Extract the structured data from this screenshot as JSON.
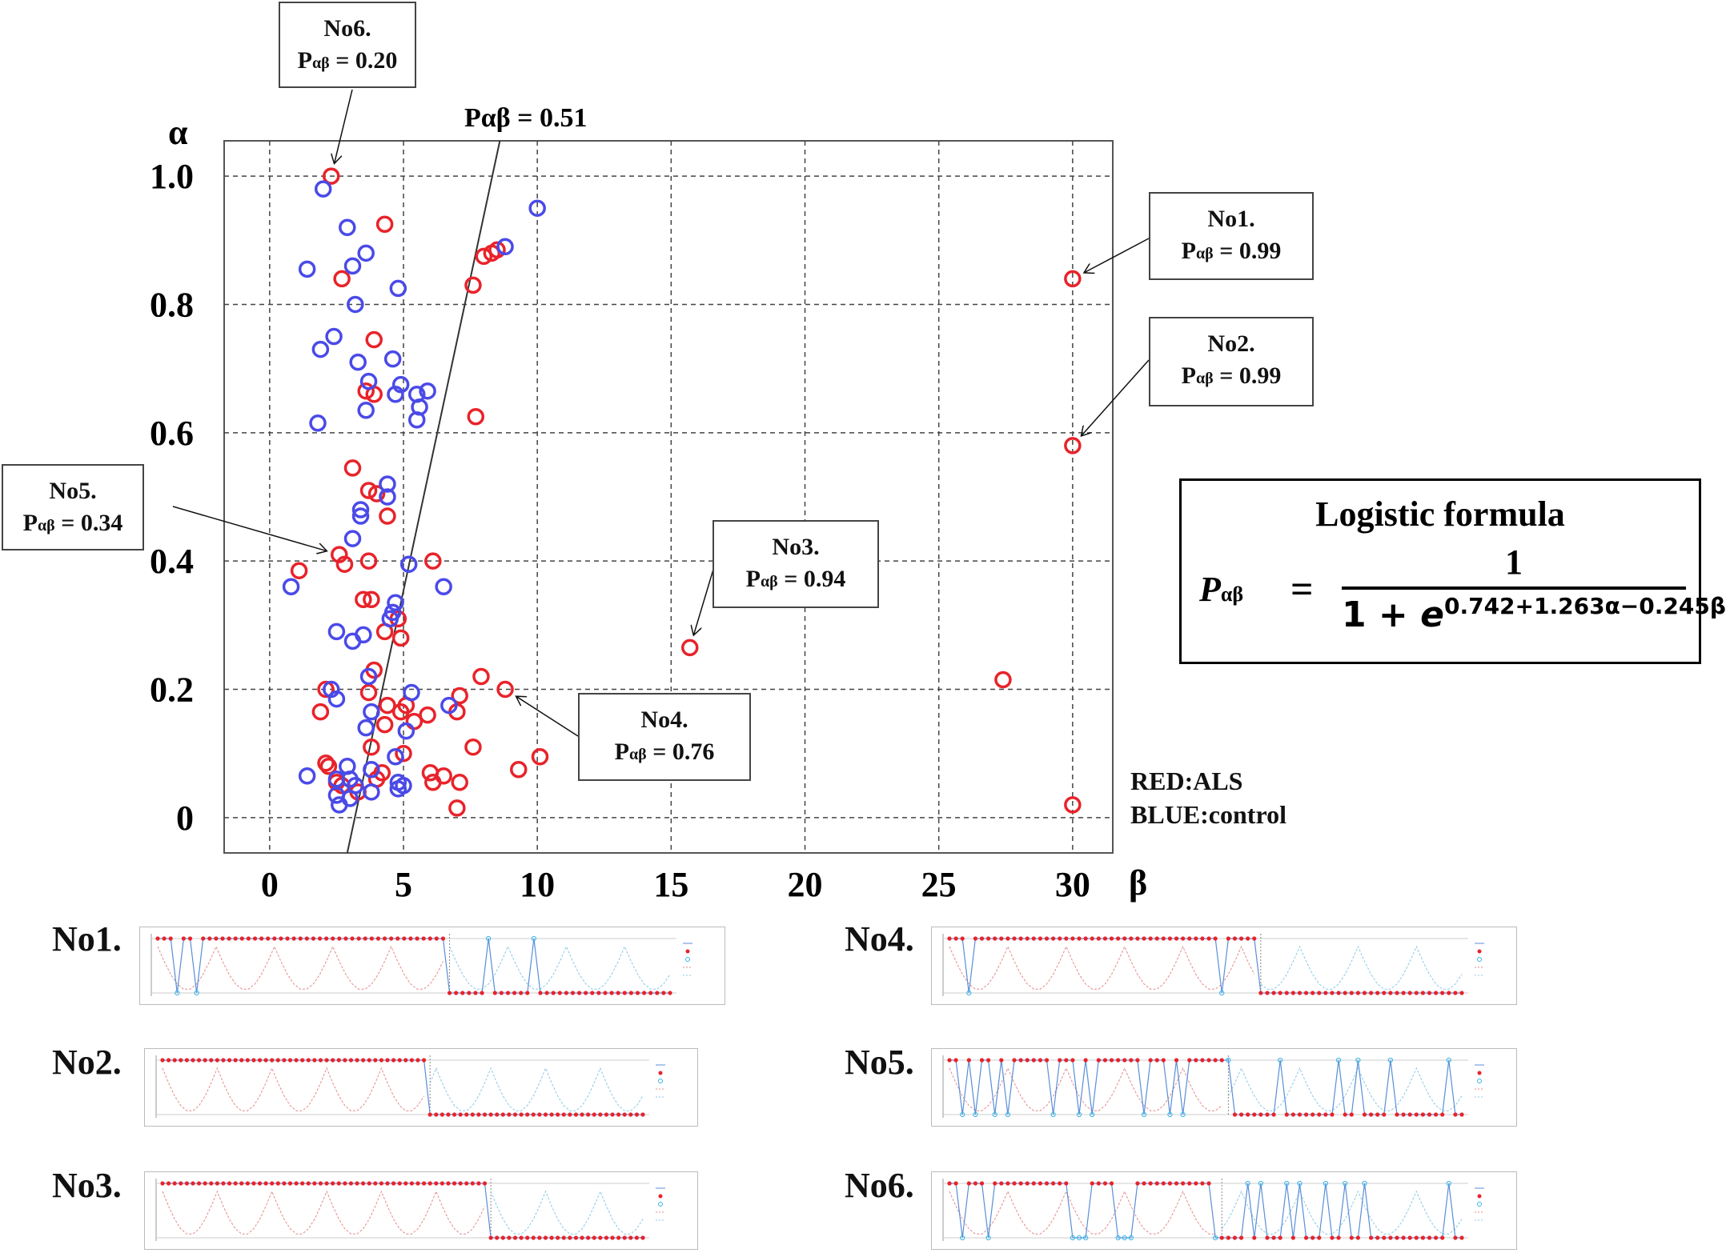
{
  "chart_data": {
    "type": "scatter",
    "xlabel": "β",
    "ylabel": "α",
    "xlim": [
      -1.7,
      31.5
    ],
    "ylim": [
      -0.055,
      1.055
    ],
    "x_ticks": [
      "0",
      "5",
      "10",
      "15",
      "20",
      "25",
      "30"
    ],
    "y_ticks": [
      "0",
      "0.2",
      "0.4",
      "0.6",
      "0.8",
      "1.0"
    ],
    "grid": "dashed",
    "boundary_label": "Pαβ = 0.51",
    "boundary_line": {
      "x0": 2.9,
      "y0": -0.055,
      "x1": 8.6,
      "y1": 1.055
    },
    "colors": {
      "ALS": "#e8232a",
      "control": "#4a4ae8"
    },
    "series": [
      {
        "name": "ALS",
        "points": [
          [
            2.3,
            1.0
          ],
          [
            4.3,
            0.925
          ],
          [
            8.0,
            0.875
          ],
          [
            8.3,
            0.88
          ],
          [
            8.5,
            0.885
          ],
          [
            7.6,
            0.83
          ],
          [
            2.7,
            0.84
          ],
          [
            3.9,
            0.745
          ],
          [
            3.6,
            0.665
          ],
          [
            3.9,
            0.66
          ],
          [
            7.7,
            0.625
          ],
          [
            3.1,
            0.545
          ],
          [
            3.7,
            0.51
          ],
          [
            4.0,
            0.505
          ],
          [
            4.4,
            0.47
          ],
          [
            2.6,
            0.41
          ],
          [
            2.8,
            0.395
          ],
          [
            3.7,
            0.4
          ],
          [
            6.1,
            0.4
          ],
          [
            1.1,
            0.385
          ],
          [
            3.5,
            0.34
          ],
          [
            3.8,
            0.34
          ],
          [
            4.8,
            0.31
          ],
          [
            4.9,
            0.28
          ],
          [
            4.3,
            0.29
          ],
          [
            15.7,
            0.265
          ],
          [
            27.4,
            0.215
          ],
          [
            3.9,
            0.23
          ],
          [
            7.9,
            0.22
          ],
          [
            8.8,
            0.2
          ],
          [
            7.1,
            0.19
          ],
          [
            2.1,
            0.2
          ],
          [
            3.7,
            0.195
          ],
          [
            4.4,
            0.175
          ],
          [
            5.1,
            0.175
          ],
          [
            7.0,
            0.165
          ],
          [
            1.9,
            0.165
          ],
          [
            4.9,
            0.165
          ],
          [
            5.9,
            0.16
          ],
          [
            5.4,
            0.15
          ],
          [
            4.3,
            0.145
          ],
          [
            7.6,
            0.11
          ],
          [
            3.8,
            0.11
          ],
          [
            5.0,
            0.1
          ],
          [
            10.1,
            0.095
          ],
          [
            2.1,
            0.085
          ],
          [
            2.2,
            0.08
          ],
          [
            9.3,
            0.075
          ],
          [
            6.0,
            0.07
          ],
          [
            6.5,
            0.065
          ],
          [
            4.2,
            0.07
          ],
          [
            4.0,
            0.06
          ],
          [
            6.1,
            0.055
          ],
          [
            7.1,
            0.055
          ],
          [
            2.5,
            0.055
          ],
          [
            2.7,
            0.05
          ],
          [
            3.3,
            0.04
          ],
          [
            7.0,
            0.015
          ],
          [
            30.0,
            0.84
          ],
          [
            30.0,
            0.58
          ],
          [
            30.0,
            0.02
          ]
        ]
      },
      {
        "name": "control",
        "points": [
          [
            2.0,
            0.98
          ],
          [
            2.9,
            0.92
          ],
          [
            3.6,
            0.88
          ],
          [
            10.0,
            0.95
          ],
          [
            8.8,
            0.89
          ],
          [
            1.4,
            0.855
          ],
          [
            3.1,
            0.86
          ],
          [
            4.8,
            0.825
          ],
          [
            3.2,
            0.8
          ],
          [
            2.4,
            0.75
          ],
          [
            1.9,
            0.73
          ],
          [
            3.3,
            0.71
          ],
          [
            4.6,
            0.715
          ],
          [
            3.7,
            0.68
          ],
          [
            4.9,
            0.675
          ],
          [
            5.5,
            0.66
          ],
          [
            5.9,
            0.665
          ],
          [
            4.7,
            0.66
          ],
          [
            5.6,
            0.64
          ],
          [
            3.6,
            0.635
          ],
          [
            5.5,
            0.62
          ],
          [
            1.8,
            0.615
          ],
          [
            4.4,
            0.52
          ],
          [
            4.4,
            0.5
          ],
          [
            3.4,
            0.48
          ],
          [
            3.4,
            0.47
          ],
          [
            3.1,
            0.435
          ],
          [
            5.2,
            0.395
          ],
          [
            0.8,
            0.36
          ],
          [
            6.5,
            0.36
          ],
          [
            4.7,
            0.335
          ],
          [
            4.6,
            0.32
          ],
          [
            4.5,
            0.31
          ],
          [
            2.5,
            0.29
          ],
          [
            3.5,
            0.285
          ],
          [
            3.1,
            0.275
          ],
          [
            3.7,
            0.22
          ],
          [
            2.3,
            0.2
          ],
          [
            2.5,
            0.185
          ],
          [
            5.3,
            0.195
          ],
          [
            6.7,
            0.175
          ],
          [
            3.8,
            0.165
          ],
          [
            3.6,
            0.14
          ],
          [
            5.1,
            0.135
          ],
          [
            4.7,
            0.095
          ],
          [
            2.9,
            0.08
          ],
          [
            3.8,
            0.075
          ],
          [
            1.4,
            0.065
          ],
          [
            3.0,
            0.06
          ],
          [
            2.5,
            0.06
          ],
          [
            4.8,
            0.055
          ],
          [
            3.2,
            0.05
          ],
          [
            5.0,
            0.05
          ],
          [
            4.8,
            0.045
          ],
          [
            3.8,
            0.04
          ],
          [
            2.5,
            0.035
          ],
          [
            3.0,
            0.03
          ],
          [
            2.6,
            0.02
          ]
        ]
      }
    ]
  },
  "annotations": [
    {
      "id": "no1",
      "name": "No1.",
      "p_label": "0.99",
      "pt": [
        30.0,
        0.84
      ]
    },
    {
      "id": "no2",
      "name": "No2.",
      "p_label": "0.99",
      "pt": [
        30.0,
        0.58
      ]
    },
    {
      "id": "no3",
      "name": "No3.",
      "p_label": "0.94",
      "pt": [
        15.7,
        0.265
      ]
    },
    {
      "id": "no4",
      "name": "No4.",
      "p_label": "0.76",
      "pt": [
        8.8,
        0.2
      ]
    },
    {
      "id": "no5",
      "name": "No5.",
      "p_label": "0.34",
      "pt": [
        2.6,
        0.41
      ]
    },
    {
      "id": "no6",
      "name": "No6.",
      "p_label": "0.20",
      "pt": [
        2.3,
        1.0
      ]
    }
  ],
  "p_symbol": "P",
  "p_subscript": "αβ",
  "p_equals": " = ",
  "legend": {
    "red": "RED:ALS",
    "blue": "BLUE:control"
  },
  "formula": {
    "title": "Logistic formula",
    "lhs": "P",
    "lhs_sub": "αβ",
    "equals": "=",
    "numerator": "1",
    "denominator_base": "1 + ",
    "denominator_e": "e",
    "exponent": "0.742+1.263α−0.245β"
  },
  "mini_plots": [
    {
      "label": "No1.",
      "split": 0.56,
      "pattern": [
        1,
        1,
        1,
        0,
        1,
        1,
        0,
        1,
        1,
        1,
        1,
        1,
        1,
        1,
        1,
        1,
        1,
        1,
        1,
        1,
        1,
        1,
        1,
        1,
        1,
        1,
        1,
        1,
        1,
        1,
        1,
        1,
        1,
        1,
        1,
        1,
        1,
        1,
        1,
        1,
        1,
        1,
        1,
        1,
        1,
        1,
        1,
        1,
        1,
        1,
        1,
        0,
        1,
        1,
        1,
        1,
        1,
        1,
        0,
        1,
        1,
        1,
        1,
        1,
        1,
        1,
        1,
        1,
        1,
        1,
        1,
        1,
        1,
        1,
        1,
        1,
        1,
        1,
        1,
        1
      ]
    },
    {
      "label": "No2.",
      "split": 0.55,
      "pattern": [
        1,
        1,
        1,
        1,
        1,
        1,
        1,
        1,
        1,
        1,
        1,
        1,
        1,
        1,
        1,
        1,
        1,
        1,
        1,
        1,
        1,
        1,
        1,
        1,
        1,
        1,
        1,
        1,
        1,
        1,
        1,
        1,
        1,
        1,
        1,
        1,
        1,
        1,
        1,
        1,
        1,
        1,
        1,
        1,
        1,
        1,
        1,
        1,
        1,
        1,
        1,
        1,
        1,
        1,
        1,
        1,
        1,
        1,
        1,
        1,
        1,
        1,
        1,
        1,
        1,
        1,
        1,
        1,
        1,
        1,
        1,
        1,
        1,
        1,
        1,
        1,
        1,
        1,
        1,
        1
      ]
    },
    {
      "label": "No3.",
      "split": 0.67,
      "pattern": [
        1,
        1,
        1,
        1,
        1,
        1,
        1,
        1,
        1,
        1,
        1,
        1,
        1,
        1,
        1,
        1,
        1,
        1,
        1,
        1,
        1,
        1,
        1,
        1,
        1,
        1,
        1,
        1,
        1,
        1,
        1,
        1,
        1,
        1,
        1,
        1,
        1,
        1,
        1,
        1,
        1,
        1,
        1,
        1,
        1,
        1,
        1,
        1,
        1,
        1,
        1,
        1,
        1,
        1,
        1,
        1,
        1,
        1,
        1,
        1,
        1,
        1,
        1,
        1,
        1,
        1,
        1,
        1,
        1,
        1,
        1,
        1,
        1,
        1,
        1,
        1,
        1,
        1,
        1,
        1
      ]
    },
    {
      "label": "No4.",
      "split": 0.6,
      "pattern": [
        1,
        1,
        1,
        0,
        1,
        1,
        1,
        1,
        1,
        1,
        1,
        1,
        1,
        1,
        1,
        1,
        1,
        1,
        1,
        1,
        1,
        1,
        1,
        1,
        1,
        1,
        1,
        1,
        1,
        1,
        1,
        1,
        1,
        1,
        1,
        1,
        1,
        1,
        1,
        1,
        1,
        1,
        0,
        1,
        1,
        1,
        1,
        1,
        1,
        1,
        1,
        1,
        1,
        1,
        1,
        1,
        1,
        1,
        1,
        1,
        1,
        1,
        1,
        1,
        1,
        1,
        1,
        1,
        1,
        1,
        1,
        1,
        1,
        1,
        1,
        1,
        1,
        1,
        1,
        1
      ]
    },
    {
      "label": "No5.",
      "split": 0.54,
      "pattern": [
        1,
        1,
        0,
        1,
        0,
        1,
        1,
        0,
        1,
        0,
        1,
        1,
        1,
        1,
        1,
        1,
        0,
        1,
        1,
        1,
        0,
        1,
        0,
        1,
        1,
        1,
        1,
        1,
        1,
        1,
        0,
        1,
        1,
        1,
        0,
        1,
        0,
        1,
        1,
        1,
        1,
        1,
        1,
        0,
        1,
        1,
        1,
        1,
        1,
        1,
        1,
        0,
        1,
        1,
        1,
        1,
        1,
        1,
        1,
        1,
        0,
        1,
        1,
        0,
        1,
        1,
        1,
        1,
        0,
        1,
        1,
        1,
        1,
        1,
        1,
        1,
        1,
        0,
        1,
        1
      ]
    },
    {
      "label": "No6.",
      "split": 0.52,
      "pattern": [
        1,
        1,
        0,
        1,
        1,
        1,
        0,
        1,
        1,
        1,
        1,
        1,
        1,
        1,
        1,
        1,
        1,
        1,
        1,
        0,
        0,
        0,
        1,
        1,
        1,
        1,
        0,
        0,
        0,
        1,
        1,
        1,
        1,
        1,
        1,
        1,
        1,
        1,
        1,
        1,
        1,
        0,
        1,
        1,
        1,
        1,
        0,
        1,
        0,
        1,
        1,
        1,
        0,
        1,
        0,
        1,
        1,
        1,
        0,
        1,
        1,
        0,
        1,
        1,
        0,
        1,
        1,
        1,
        1,
        1,
        1,
        1,
        1,
        1,
        1,
        1,
        1,
        0,
        1,
        1
      ]
    }
  ]
}
